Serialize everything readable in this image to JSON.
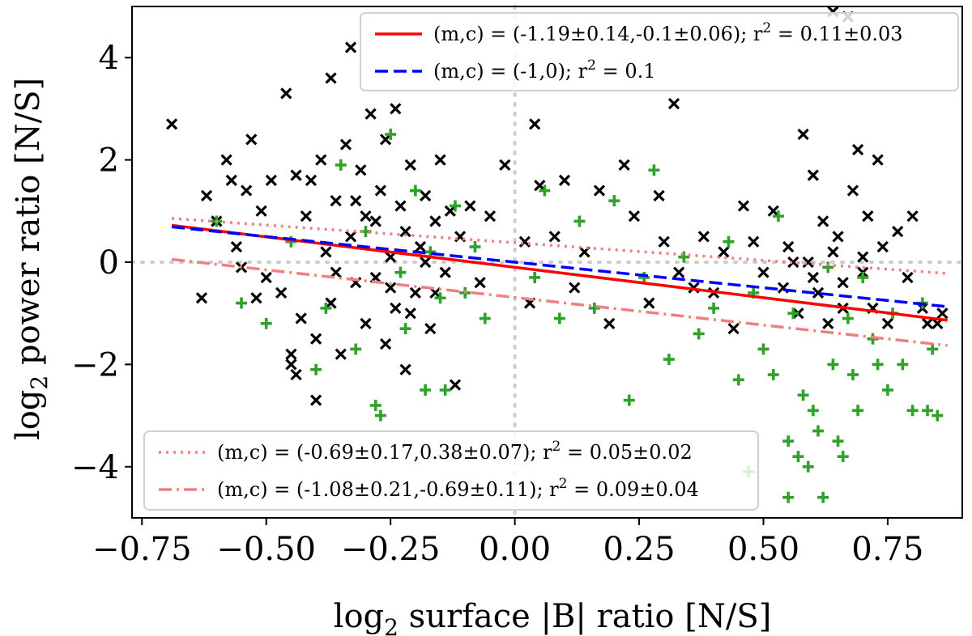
{
  "chart_data": {
    "type": "scatter",
    "xlabel_prefix": "log",
    "xlabel_sub": "2",
    "xlabel_rest": " surface |B| ratio [N/S]",
    "ylabel_prefix": "log",
    "ylabel_sub": "2",
    "ylabel_rest": " power ratio [N/S]",
    "xlim": [
      -0.77,
      0.9
    ],
    "ylim": [
      -5.0,
      5.0
    ],
    "x_ticks": [
      -0.75,
      -0.5,
      -0.25,
      0.0,
      0.25,
      0.5,
      0.75
    ],
    "x_tick_labels": [
      "−0.75",
      "−0.50",
      "−0.25",
      "0.00",
      "0.25",
      "0.50",
      "0.75"
    ],
    "y_ticks": [
      -4,
      -2,
      0,
      2,
      4
    ],
    "y_tick_labels": [
      "−4",
      "−2",
      "0",
      "2",
      "4"
    ],
    "reference_lines": {
      "x": 0.0,
      "y": 0.0,
      "color": "#cccccc"
    },
    "series": [
      {
        "name": "black-x",
        "marker": "x",
        "color": "#000000",
        "points": [
          [
            -0.69,
            2.7
          ],
          [
            -0.63,
            -0.7
          ],
          [
            -0.62,
            1.3
          ],
          [
            -0.6,
            0.8
          ],
          [
            -0.58,
            2.0
          ],
          [
            -0.57,
            1.6
          ],
          [
            -0.56,
            0.3
          ],
          [
            -0.55,
            -0.1
          ],
          [
            -0.54,
            1.4
          ],
          [
            -0.53,
            2.4
          ],
          [
            -0.52,
            -0.7
          ],
          [
            -0.51,
            1.0
          ],
          [
            -0.5,
            -0.3
          ],
          [
            -0.49,
            1.6
          ],
          [
            -0.47,
            -0.6
          ],
          [
            -0.46,
            3.3
          ],
          [
            -0.45,
            -2.0
          ],
          [
            -0.44,
            1.7
          ],
          [
            -0.43,
            -1.1
          ],
          [
            -0.42,
            0.9
          ],
          [
            -0.41,
            1.6
          ],
          [
            -0.4,
            -1.5
          ],
          [
            -0.39,
            2.0
          ],
          [
            -0.38,
            0.2
          ],
          [
            -0.37,
            3.6
          ],
          [
            -0.37,
            -0.8
          ],
          [
            -0.36,
            1.2
          ],
          [
            -0.35,
            -1.8
          ],
          [
            -0.34,
            2.3
          ],
          [
            -0.33,
            0.5
          ],
          [
            -0.33,
            4.2
          ],
          [
            -0.32,
            -0.4
          ],
          [
            -0.31,
            1.8
          ],
          [
            -0.3,
            -1.2
          ],
          [
            -0.3,
            0.9
          ],
          [
            -0.29,
            2.9
          ],
          [
            -0.28,
            -0.3
          ],
          [
            -0.27,
            1.4
          ],
          [
            -0.26,
            -1.6
          ],
          [
            -0.26,
            2.4
          ],
          [
            -0.25,
            0.1
          ],
          [
            -0.24,
            3.0
          ],
          [
            -0.24,
            -0.9
          ],
          [
            -0.23,
            1.1
          ],
          [
            -0.22,
            -2.1
          ],
          [
            -0.22,
            0.6
          ],
          [
            -0.21,
            1.9
          ],
          [
            -0.2,
            -0.6
          ],
          [
            -0.19,
            0.3
          ],
          [
            -0.18,
            1.3
          ],
          [
            -0.17,
            -1.3
          ],
          [
            -0.16,
            0.8
          ],
          [
            -0.15,
            2.0
          ],
          [
            -0.14,
            -0.2
          ],
          [
            -0.13,
            1.0
          ],
          [
            -0.12,
            -2.4
          ],
          [
            -0.11,
            0.5
          ],
          [
            -0.09,
            1.1
          ],
          [
            -0.07,
            -0.4
          ],
          [
            -0.05,
            0.9
          ],
          [
            -0.4,
            -2.7
          ],
          [
            -0.44,
            -2.2
          ],
          [
            -0.45,
            -1.8
          ],
          [
            -0.36,
            -0.2
          ],
          [
            -0.28,
            0.8
          ],
          [
            -0.32,
            1.2
          ],
          [
            -0.25,
            -0.5
          ],
          [
            -0.21,
            -1.0
          ],
          [
            -0.18,
            0.0
          ],
          [
            -0.16,
            -0.6
          ],
          [
            -0.02,
            1.9
          ],
          [
            0.02,
            0.4
          ],
          [
            0.03,
            -0.8
          ],
          [
            0.04,
            2.7
          ],
          [
            0.05,
            1.5
          ],
          [
            0.08,
            0.5
          ],
          [
            0.1,
            1.6
          ],
          [
            0.12,
            -0.5
          ],
          [
            0.14,
            0.2
          ],
          [
            0.17,
            1.4
          ],
          [
            0.19,
            -1.2
          ],
          [
            0.22,
            1.9
          ],
          [
            0.24,
            0.9
          ],
          [
            0.27,
            -0.8
          ],
          [
            0.29,
            1.3
          ],
          [
            0.3,
            0.4
          ],
          [
            0.32,
            3.1
          ],
          [
            0.33,
            -0.2
          ],
          [
            0.36,
            -0.5
          ],
          [
            0.38,
            0.5
          ],
          [
            0.4,
            -0.6
          ],
          [
            0.42,
            0.2
          ],
          [
            0.44,
            -1.3
          ],
          [
            0.46,
            1.1
          ],
          [
            0.48,
            0.4
          ],
          [
            0.5,
            -0.2
          ],
          [
            0.52,
            1.0
          ],
          [
            0.54,
            -0.5
          ],
          [
            0.55,
            0.3
          ],
          [
            0.57,
            -1.0
          ],
          [
            0.58,
            2.5
          ],
          [
            0.59,
            0.0
          ],
          [
            0.6,
            1.7
          ],
          [
            0.61,
            -0.6
          ],
          [
            0.62,
            0.8
          ],
          [
            0.63,
            -1.2
          ],
          [
            0.64,
            4.9
          ],
          [
            0.65,
            0.5
          ],
          [
            0.66,
            -0.4
          ],
          [
            0.67,
            4.8
          ],
          [
            0.68,
            1.4
          ],
          [
            0.69,
            2.2
          ],
          [
            0.7,
            -0.2
          ],
          [
            0.71,
            0.9
          ],
          [
            0.72,
            -0.9
          ],
          [
            0.73,
            2.0
          ],
          [
            0.74,
            0.3
          ],
          [
            0.75,
            -1.2
          ],
          [
            0.77,
            0.6
          ],
          [
            0.79,
            -0.3
          ],
          [
            0.8,
            0.9
          ],
          [
            0.82,
            -0.9
          ],
          [
            0.83,
            -1.2
          ],
          [
            0.85,
            -1.2
          ],
          [
            0.86,
            -1.0
          ],
          [
            0.56,
            0.0
          ],
          [
            0.6,
            -0.3
          ],
          [
            0.64,
            0.2
          ],
          [
            0.66,
            -0.9
          ],
          [
            0.7,
            0.1
          ]
        ]
      },
      {
        "name": "green-plus",
        "marker": "+",
        "color": "#33a02c",
        "points": [
          [
            -0.6,
            0.8
          ],
          [
            -0.55,
            -0.8
          ],
          [
            -0.5,
            -1.2
          ],
          [
            -0.45,
            0.4
          ],
          [
            -0.4,
            -2.1
          ],
          [
            -0.38,
            -0.9
          ],
          [
            -0.35,
            1.9
          ],
          [
            -0.32,
            -1.7
          ],
          [
            -0.3,
            0.6
          ],
          [
            -0.28,
            -2.8
          ],
          [
            -0.27,
            -3.0
          ],
          [
            -0.25,
            2.5
          ],
          [
            -0.23,
            -0.2
          ],
          [
            -0.22,
            -1.3
          ],
          [
            -0.2,
            1.4
          ],
          [
            -0.18,
            -2.5
          ],
          [
            -0.17,
            0.2
          ],
          [
            -0.15,
            -0.7
          ],
          [
            -0.14,
            -2.5
          ],
          [
            -0.12,
            1.1
          ],
          [
            -0.1,
            -0.6
          ],
          [
            -0.08,
            0.3
          ],
          [
            -0.06,
            -1.1
          ],
          [
            0.04,
            -0.3
          ],
          [
            0.06,
            1.4
          ],
          [
            0.09,
            -1.1
          ],
          [
            0.13,
            0.8
          ],
          [
            0.16,
            -0.9
          ],
          [
            0.2,
            1.2
          ],
          [
            0.23,
            -2.7
          ],
          [
            0.26,
            -0.3
          ],
          [
            0.28,
            1.8
          ],
          [
            0.31,
            -1.9
          ],
          [
            0.34,
            0.1
          ],
          [
            0.37,
            -1.4
          ],
          [
            0.4,
            -0.9
          ],
          [
            0.43,
            0.4
          ],
          [
            0.45,
            -2.3
          ],
          [
            0.47,
            -4.1
          ],
          [
            0.48,
            -0.6
          ],
          [
            0.5,
            -1.7
          ],
          [
            0.52,
            -2.2
          ],
          [
            0.53,
            0.9
          ],
          [
            0.55,
            -3.5
          ],
          [
            0.56,
            -1.0
          ],
          [
            0.57,
            -3.8
          ],
          [
            0.58,
            -2.6
          ],
          [
            0.59,
            -4.0
          ],
          [
            0.6,
            -2.9
          ],
          [
            0.61,
            -3.3
          ],
          [
            0.62,
            -4.6
          ],
          [
            0.63,
            -0.1
          ],
          [
            0.64,
            -2.0
          ],
          [
            0.65,
            -3.5
          ],
          [
            0.66,
            -3.8
          ],
          [
            0.67,
            -1.1
          ],
          [
            0.68,
            -2.2
          ],
          [
            0.69,
            -2.9
          ],
          [
            0.7,
            -0.3
          ],
          [
            0.72,
            -1.5
          ],
          [
            0.73,
            -2.0
          ],
          [
            0.75,
            -2.5
          ],
          [
            0.76,
            -1.0
          ],
          [
            0.78,
            -2.0
          ],
          [
            0.8,
            -2.9
          ],
          [
            0.82,
            -0.8
          ],
          [
            0.83,
            -2.9
          ],
          [
            0.84,
            -1.7
          ],
          [
            0.85,
            -3.0
          ],
          [
            0.55,
            -4.6
          ]
        ]
      }
    ],
    "fits": [
      {
        "id": "fit1",
        "label": "(m,c) = (-1.19±0.14,-0.1±0.06); r",
        "label_suffix": " = 0.11±0.03",
        "m": -1.19,
        "c": -0.1,
        "x_range": [
          -0.69,
          0.87
        ],
        "color": "#ff0000",
        "style": "solid"
      },
      {
        "id": "fit2",
        "label": "(m,c) = (-1,0); r",
        "label_suffix": " = 0.1",
        "m": -1.0,
        "c": 0.0,
        "x_range": [
          -0.69,
          0.87
        ],
        "color": "#0000ff",
        "style": "dashed"
      },
      {
        "id": "fit3",
        "label": "(m,c) = (-0.69±0.17,0.38±0.07); r",
        "label_suffix": " = 0.05±0.02",
        "m": -0.69,
        "c": 0.38,
        "x_range": [
          -0.69,
          0.87
        ],
        "color": "#f08080",
        "style": "dotted"
      },
      {
        "id": "fit4",
        "label": "(m,c) = (-1.08±0.21,-0.69±0.11); r",
        "label_suffix": " = 0.09±0.04",
        "m": -1.08,
        "c": -0.69,
        "x_range": [
          -0.69,
          0.87
        ],
        "color": "#f08080",
        "style": "dashdot"
      }
    ],
    "legends": {
      "top": {
        "placement": "top-right",
        "entries": [
          "fit1",
          "fit2"
        ]
      },
      "bottom": {
        "placement": "bottom-left",
        "entries": [
          "fit3",
          "fit4"
        ]
      }
    },
    "superscript": "2"
  }
}
